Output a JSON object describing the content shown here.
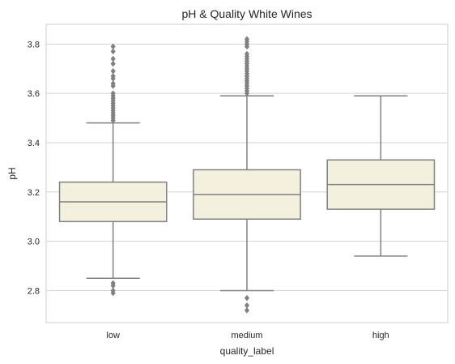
{
  "chart_data": {
    "type": "boxplot",
    "title": "pH & Quality White Wines",
    "xlabel": "quality_label",
    "ylabel": "pH",
    "ylim": [
      2.67,
      3.88
    ],
    "yticks": [
      "2.8",
      "3.0",
      "3.2",
      "3.4",
      "3.6",
      "3.8"
    ],
    "grid": true,
    "box_color": "#f3f1de",
    "line_color": "#808080",
    "grid_color": "#d3d3d3",
    "categories": [
      "low",
      "medium",
      "high"
    ],
    "boxes": [
      {
        "category": "low",
        "whisker_low": 2.85,
        "q1": 3.08,
        "median": 3.16,
        "q3": 3.24,
        "whisker_high": 3.48,
        "outliers": [
          2.79,
          2.8,
          2.82,
          2.83,
          3.49,
          3.5,
          3.51,
          3.52,
          3.53,
          3.54,
          3.55,
          3.56,
          3.57,
          3.58,
          3.59,
          3.6,
          3.63,
          3.64,
          3.66,
          3.67,
          3.69,
          3.72,
          3.74,
          3.77,
          3.79
        ]
      },
      {
        "category": "medium",
        "whisker_low": 2.8,
        "q1": 3.09,
        "median": 3.19,
        "q3": 3.29,
        "whisker_high": 3.59,
        "outliers": [
          2.72,
          2.74,
          2.77,
          3.6,
          3.61,
          3.62,
          3.63,
          3.64,
          3.65,
          3.66,
          3.67,
          3.68,
          3.69,
          3.7,
          3.71,
          3.72,
          3.73,
          3.74,
          3.75,
          3.76,
          3.79,
          3.8,
          3.81,
          3.82
        ]
      },
      {
        "category": "high",
        "whisker_low": 2.94,
        "q1": 3.13,
        "median": 3.23,
        "q3": 3.33,
        "whisker_high": 3.59,
        "outliers": []
      }
    ]
  }
}
